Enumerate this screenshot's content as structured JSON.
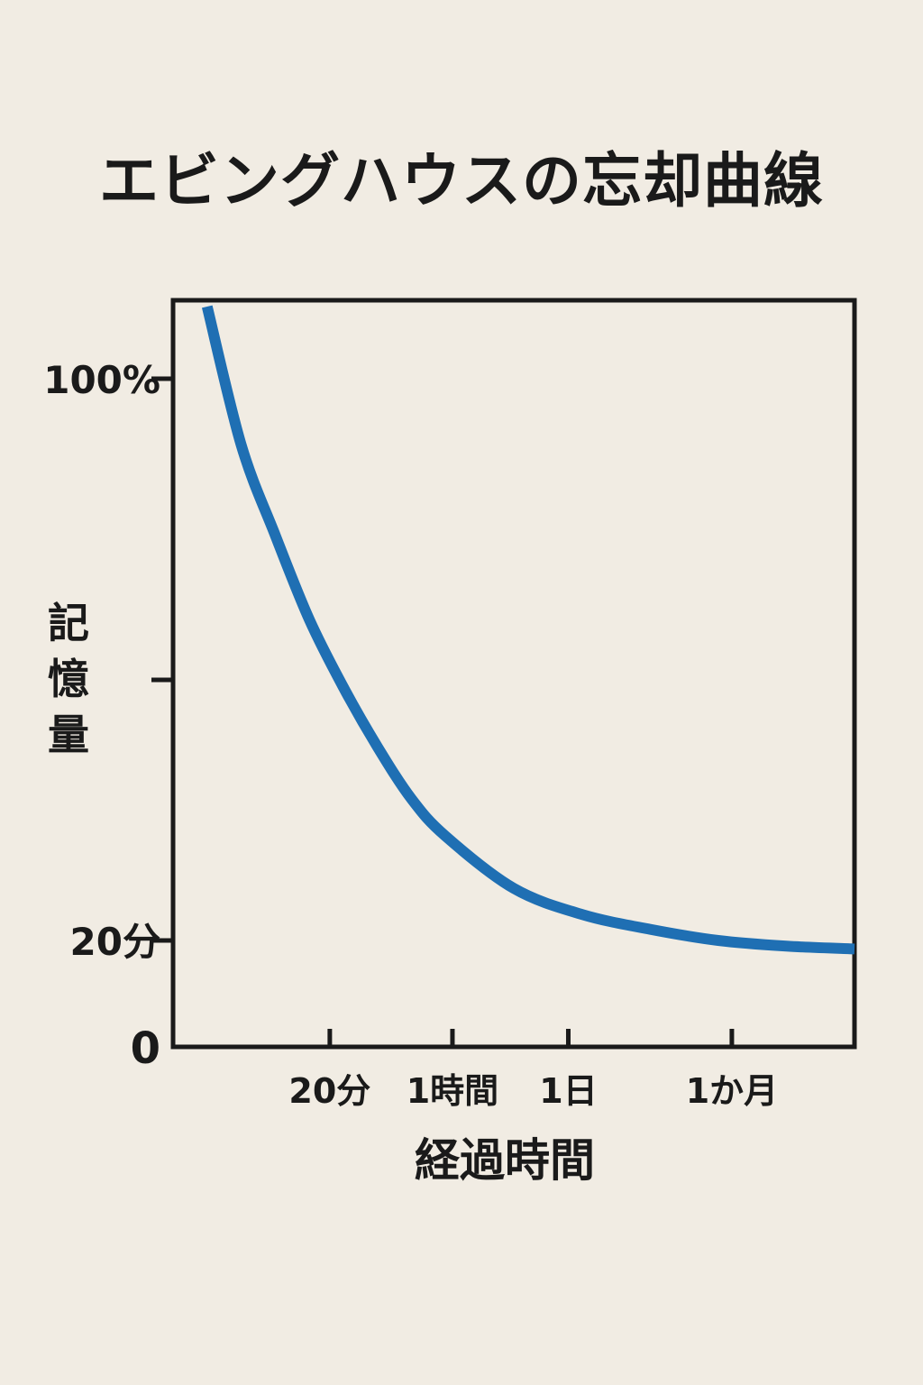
{
  "chart_data": {
    "type": "line",
    "title": "エビングハウスの忘却曲線",
    "xlabel": "経過時間",
    "ylabel": "記憶量",
    "x_ticks": [
      "20分",
      "1時間",
      "1日",
      "1か月"
    ],
    "y_ticks": [
      {
        "value": 100,
        "label": "100%"
      },
      {
        "value": 50,
        "label": ""
      },
      {
        "value": 15,
        "label": "20分"
      },
      {
        "value": 0,
        "label": "0"
      }
    ],
    "ylim": [
      0,
      110
    ],
    "grid": false,
    "series": [
      {
        "color": "#1f6fb3",
        "points": [
          {
            "x": 0.05,
            "y": 110
          },
          {
            "x": 0.1,
            "y": 89
          },
          {
            "x": 0.15,
            "y": 74
          },
          {
            "x": 0.2,
            "y": 60
          },
          {
            "x": 0.25,
            "y": 49
          },
          {
            "x": 0.3,
            "y": 41
          },
          {
            "x": 0.35,
            "y": 34
          },
          {
            "x": 0.4,
            "y": 29
          },
          {
            "x": 0.5,
            "y": 22
          },
          {
            "x": 0.6,
            "y": 18.5
          },
          {
            "x": 0.7,
            "y": 16.5
          },
          {
            "x": 0.8,
            "y": 15
          },
          {
            "x": 0.9,
            "y": 14.2
          },
          {
            "x": 1.0,
            "y": 13.8
          }
        ]
      }
    ],
    "x_tick_positions": [
      0.23,
      0.41,
      0.58,
      0.82
    ]
  }
}
